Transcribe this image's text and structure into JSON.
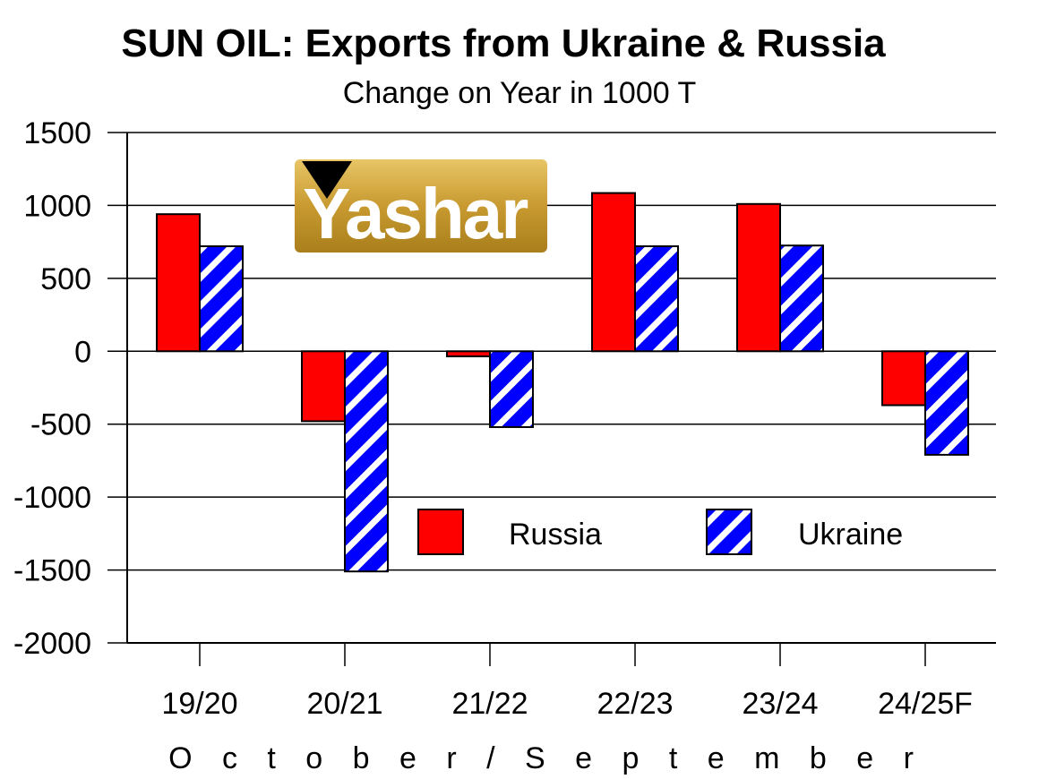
{
  "chart_data": {
    "type": "bar",
    "title": "SUN OIL: Exports from Ukraine & Russia",
    "subtitle": "Change on Year in 1000 T",
    "xlabel": "O c t o b e r / S e p t e m b e r",
    "ylabel": "",
    "ylim": [
      -2000,
      1500
    ],
    "yticks": [
      1500,
      1000,
      500,
      0,
      -500,
      -1000,
      -1500,
      -2000
    ],
    "grid": true,
    "legend_position": "lower-right",
    "categories": [
      "19/20",
      "20/21",
      "21/22",
      "22/23",
      "23/24",
      "24/25F"
    ],
    "series": [
      {
        "name": "Russia",
        "color": "#ff0000",
        "pattern": "solid",
        "values": [
          940,
          -480,
          -35,
          1085,
          1010,
          -370
        ]
      },
      {
        "name": "Ukraine",
        "color": "#0000ff",
        "pattern": "hatched",
        "values": [
          720,
          -1510,
          -520,
          720,
          725,
          -710
        ]
      }
    ]
  },
  "watermark": {
    "text": "Yashar",
    "colors": {
      "gold_light": "#d9b24a",
      "gold_dark": "#a97f1c",
      "mark": "#000000"
    }
  }
}
